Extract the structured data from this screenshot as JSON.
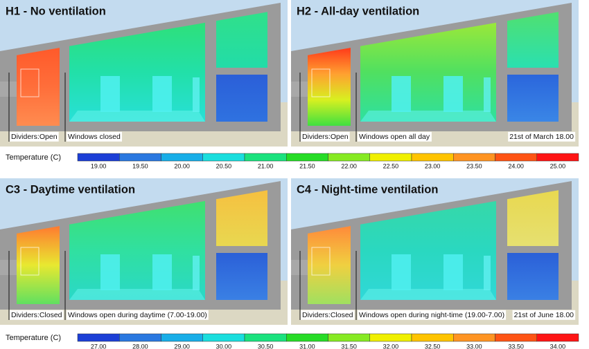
{
  "panels": [
    {
      "title": "H1 - No ventilation",
      "dividers": "Dividers:Open",
      "windows": "Windows closed"
    },
    {
      "title": "H2 - All-day ventilation",
      "dividers": "Dividers:Open",
      "windows": "Windows open all day",
      "date": "21st of March 18.00"
    },
    {
      "title": "C3 - Daytime ventilation",
      "dividers": "Dividers:Closed",
      "windows": "Windows open during daytime (7.00-19.00)"
    },
    {
      "title": "C4 - Night-time ventilation",
      "dividers": "Dividers:Closed",
      "windows": "Windows open during night-time (19.00-7.00)",
      "date": "21st of June 18.00"
    }
  ],
  "colorbars": [
    {
      "label": "Temperature (C)",
      "ticks": [
        "19.00",
        "19.50",
        "20.00",
        "20.50",
        "21.00",
        "21.50",
        "22.00",
        "22.50",
        "23.00",
        "23.50",
        "24.00",
        "25.00"
      ]
    },
    {
      "label": "Temperature (C)",
      "ticks": [
        "27.00",
        "28.00",
        "29.00",
        "30.00",
        "30.50",
        "31.00",
        "31.50",
        "32.00",
        "32.50",
        "33.00",
        "33.50",
        "34.00"
      ]
    }
  ]
}
